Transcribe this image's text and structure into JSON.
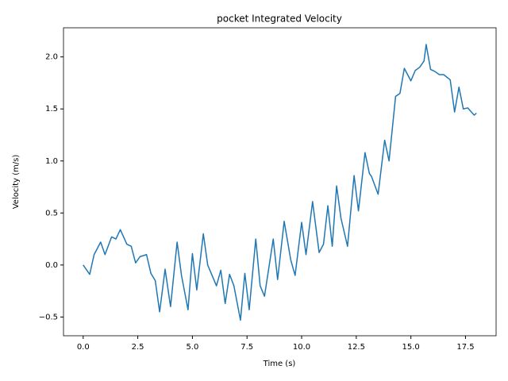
{
  "chart_data": {
    "type": "line",
    "title": "pocket Integrated Velocity",
    "x_label": "Time (s)",
    "y_label": "Velocity (m/s)",
    "x": [
      0,
      0.3,
      0.5,
      0.8,
      1.0,
      1.3,
      1.5,
      1.7,
      2.0,
      2.2,
      2.4,
      2.6,
      2.9,
      3.1,
      3.3,
      3.5,
      3.75,
      4.0,
      4.3,
      4.5,
      4.8,
      5.0,
      5.2,
      5.5,
      5.7,
      5.9,
      6.1,
      6.3,
      6.5,
      6.7,
      6.9,
      7.2,
      7.4,
      7.6,
      7.9,
      8.1,
      8.3,
      8.7,
      8.9,
      9.2,
      9.5,
      9.7,
      10.0,
      10.2,
      10.5,
      10.8,
      11.0,
      11.2,
      11.4,
      11.6,
      11.8,
      12.1,
      12.4,
      12.6,
      12.9,
      13.1,
      13.2,
      13.5,
      13.8,
      14.0,
      14.3,
      14.5,
      14.7,
      15.0,
      15.2,
      15.4,
      15.6,
      15.7,
      15.9,
      16.1,
      16.3,
      16.5,
      16.8,
      17.0,
      17.2,
      17.4,
      17.6,
      17.9,
      18.0
    ],
    "series": [
      {
        "name": "velocity",
        "color": "#1f77b4",
        "values": [
          0,
          -0.09,
          0.1,
          0.22,
          0.1,
          0.27,
          0.25,
          0.34,
          0.2,
          0.18,
          0.02,
          0.08,
          0.1,
          -0.08,
          -0.15,
          -0.45,
          -0.04,
          -0.4,
          0.22,
          -0.1,
          -0.43,
          0.11,
          -0.24,
          0.3,
          0.0,
          -0.1,
          -0.2,
          -0.05,
          -0.37,
          -0.09,
          -0.2,
          -0.53,
          -0.08,
          -0.43,
          0.25,
          -0.2,
          -0.3,
          0.25,
          -0.14,
          0.42,
          0.05,
          -0.1,
          0.41,
          0.1,
          0.61,
          0.12,
          0.2,
          0.57,
          0.18,
          0.76,
          0.45,
          0.18,
          0.86,
          0.52,
          1.08,
          0.88,
          0.85,
          0.68,
          1.2,
          1.0,
          1.62,
          1.65,
          1.89,
          1.77,
          1.87,
          1.9,
          1.96,
          2.12,
          1.88,
          1.86,
          1.83,
          1.83,
          1.78,
          1.47,
          1.71,
          1.5,
          1.51,
          1.44,
          1.46
        ]
      }
    ],
    "xlim": [
      -0.9,
      18.9
    ],
    "ylim": [
      -0.68,
      2.28
    ],
    "xticks": [
      {
        "value": 0,
        "label": "0.0"
      },
      {
        "value": 2.5,
        "label": "2.5"
      },
      {
        "value": 5,
        "label": "5.0"
      },
      {
        "value": 7.5,
        "label": "7.5"
      },
      {
        "value": 10,
        "label": "10.0"
      },
      {
        "value": 12.5,
        "label": "12.5"
      },
      {
        "value": 15,
        "label": "15.0"
      },
      {
        "value": 17.5,
        "label": "17.5"
      }
    ],
    "yticks": [
      {
        "value": -0.5,
        "label": "−0.5"
      },
      {
        "value": 0,
        "label": "0.0"
      },
      {
        "value": 0.5,
        "label": "0.5"
      },
      {
        "value": 1,
        "label": "1.0"
      },
      {
        "value": 1.5,
        "label": "1.5"
      },
      {
        "value": 2,
        "label": "2.0"
      }
    ],
    "grid": false
  }
}
